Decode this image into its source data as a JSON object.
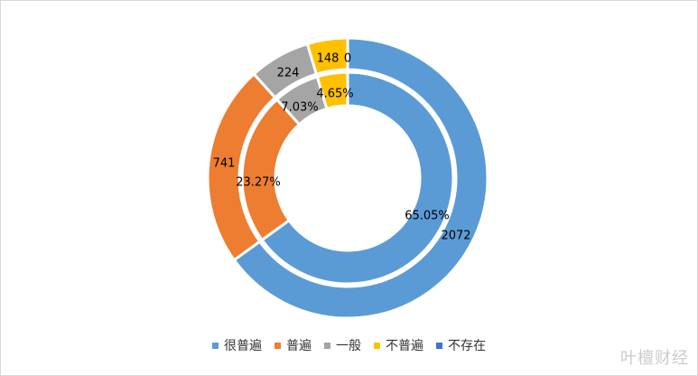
{
  "chart_data": {
    "type": "pie",
    "subtype": "double-donut",
    "categories": [
      "很普遍",
      "普遍",
      "一般",
      "不普遍",
      "不存在"
    ],
    "colors": [
      "#5b9bd5",
      "#ed7d31",
      "#a5a5a5",
      "#ffc000",
      "#4472c4"
    ],
    "series": [
      {
        "ring": "inner",
        "values": [
          65.05,
          23.27,
          7.03,
          4.65,
          0
        ],
        "labels": [
          "65.05%",
          "23.27%",
          "7.03%",
          "4.65%",
          ""
        ]
      },
      {
        "ring": "outer",
        "values": [
          2072,
          741,
          224,
          148,
          0
        ],
        "labels": [
          "2072",
          "741",
          "224",
          "148",
          "0"
        ]
      }
    ],
    "legend_position": "bottom"
  },
  "watermark": "叶檀财经"
}
